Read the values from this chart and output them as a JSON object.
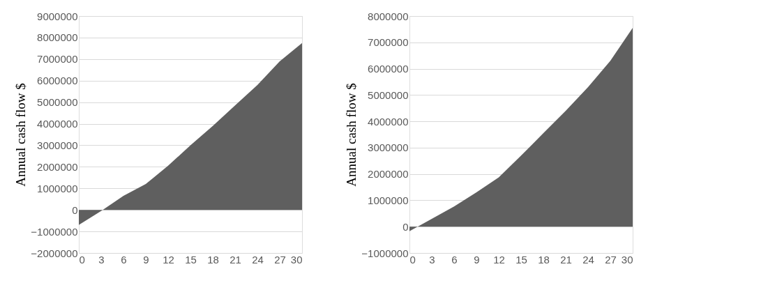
{
  "chart_data": [
    {
      "type": "area",
      "ylabel": "Annual cash flow $",
      "x": [
        0,
        3,
        6,
        9,
        12,
        15,
        18,
        21,
        24,
        27,
        30
      ],
      "series": [
        {
          "color": "#5f5f5f",
          "values": [
            -700000,
            -50000,
            650000,
            1200000,
            2050000,
            3000000,
            3900000,
            4850000,
            5800000,
            6900000,
            7750000
          ]
        }
      ],
      "xlim": [
        0,
        30
      ],
      "xticks": [
        0,
        3,
        6,
        9,
        12,
        15,
        18,
        21,
        24,
        27,
        30
      ],
      "ylim": [
        -2000000,
        9000000
      ],
      "yticks": [
        -2000000,
        -1000000,
        0,
        1000000,
        2000000,
        3000000,
        4000000,
        5000000,
        6000000,
        7000000,
        8000000,
        9000000
      ],
      "grid": "y"
    },
    {
      "type": "area",
      "ylabel": "Annual cash flow $",
      "x": [
        0,
        3,
        6,
        9,
        12,
        15,
        18,
        21,
        24,
        27,
        30
      ],
      "series": [
        {
          "color": "#5f5f5f",
          "values": [
            -170000,
            300000,
            770000,
            1300000,
            1870000,
            2700000,
            3550000,
            4400000,
            5300000,
            6300000,
            7550000
          ]
        }
      ],
      "xlim": [
        0,
        30
      ],
      "xticks": [
        0,
        3,
        6,
        9,
        12,
        15,
        18,
        21,
        24,
        27,
        30
      ],
      "ylim": [
        -1000000,
        8000000
      ],
      "yticks": [
        -1000000,
        0,
        1000000,
        2000000,
        3000000,
        4000000,
        5000000,
        6000000,
        7000000,
        8000000
      ],
      "grid": "y"
    }
  ]
}
